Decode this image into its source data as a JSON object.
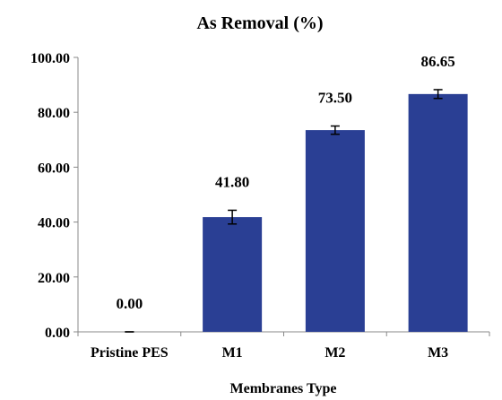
{
  "chart_data": {
    "type": "bar",
    "title": "As Removal (%)",
    "xlabel": "Membranes Type",
    "ylabel": "",
    "categories": [
      "Pristine PES",
      "M1",
      "M2",
      "M3"
    ],
    "values": [
      0.0,
      41.8,
      73.5,
      86.65
    ],
    "value_labels": [
      "0.00",
      "41.80",
      "73.50",
      "86.65"
    ],
    "error": [
      0.0,
      2.5,
      1.5,
      1.6
    ],
    "ylim": [
      0,
      100
    ],
    "yticks": [
      0,
      20,
      40,
      60,
      80,
      100
    ],
    "ytick_labels": [
      "0.00",
      "20.00",
      "40.00",
      "60.00",
      "80.00",
      "100.00"
    ],
    "grid": false,
    "legend": "none",
    "bar_color": "#2a3f94"
  }
}
